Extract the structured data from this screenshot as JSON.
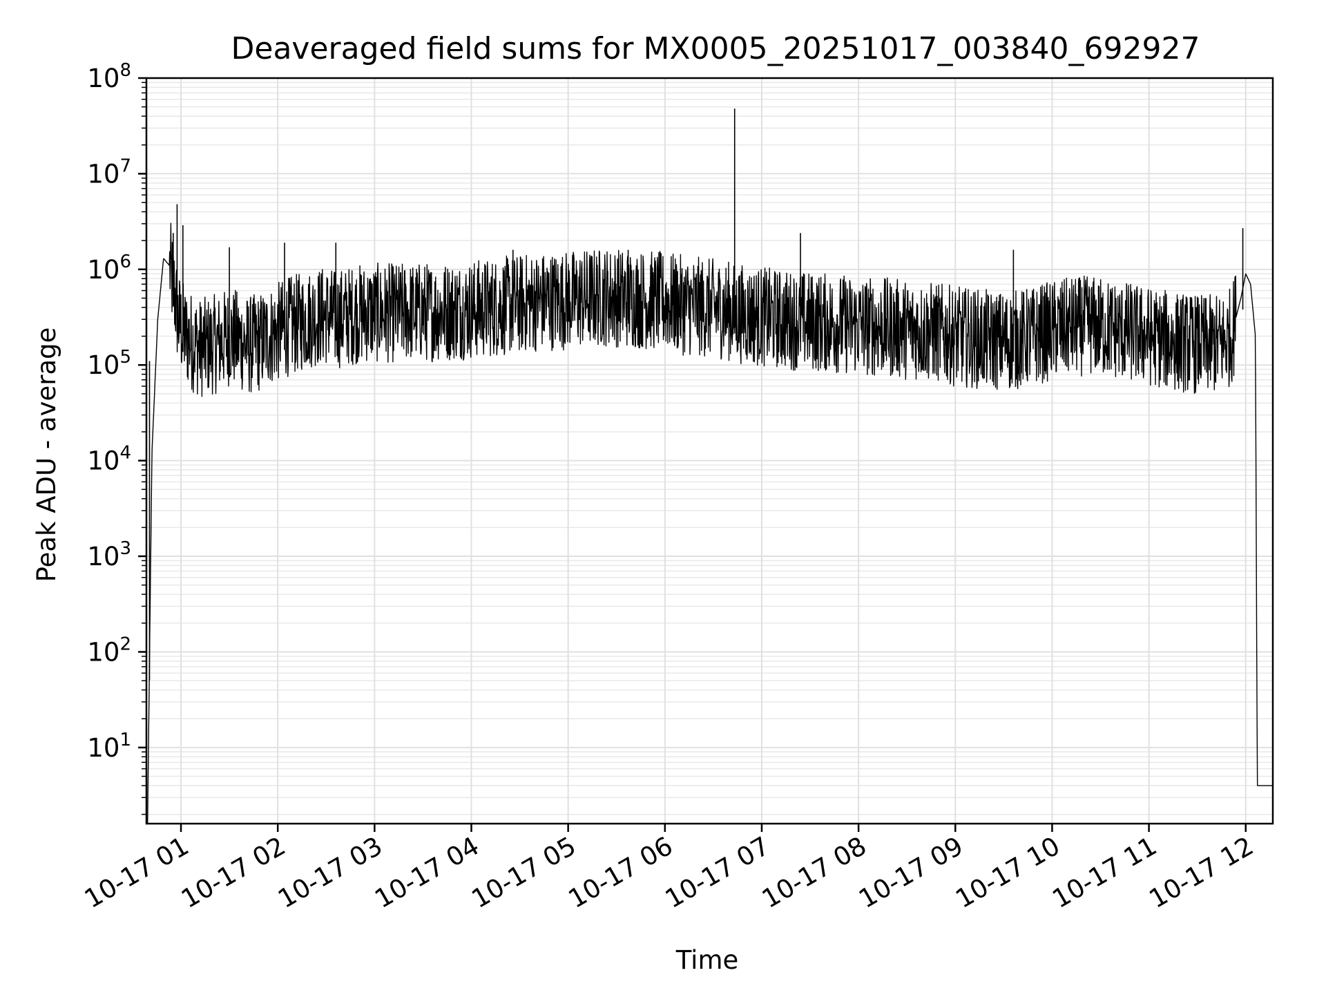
{
  "chart_data": {
    "type": "line",
    "title": "Deaveraged field sums for MX0005_20251017_003840_692927",
    "xlabel": "Time",
    "ylabel": "Peak ADU - average",
    "yscale": "log",
    "ylim": [
      1.6,
      100000000
    ],
    "xlim_hours": [
      0.643,
      12.28
    ],
    "grid": true,
    "x_tick_labels": [
      "10-17 01",
      "10-17 02",
      "10-17 03",
      "10-17 04",
      "10-17 05",
      "10-17 06",
      "10-17 07",
      "10-17 08",
      "10-17 09",
      "10-17 10",
      "10-17 11",
      "10-17 12"
    ],
    "x_tick_hours": [
      1,
      2,
      3,
      4,
      5,
      6,
      7,
      8,
      9,
      10,
      11,
      12
    ],
    "y_ticks": [
      {
        "base": "10",
        "exp": "1",
        "value": 10
      },
      {
        "base": "10",
        "exp": "2",
        "value": 100
      },
      {
        "base": "10",
        "exp": "3",
        "value": 1000
      },
      {
        "base": "10",
        "exp": "4",
        "value": 10000
      },
      {
        "base": "10",
        "exp": "5",
        "value": 100000
      },
      {
        "base": "10",
        "exp": "6",
        "value": 1000000
      },
      {
        "base": "10",
        "exp": "7",
        "value": 10000000
      },
      {
        "base": "10",
        "exp": "8",
        "value": 100000000
      }
    ],
    "series": [
      {
        "name": "Peak ADU - average",
        "color": "#000000",
        "x_hours": [
          0.655,
          0.7,
          0.76,
          0.82,
          0.88,
          0.93,
          0.97,
          1.0,
          1.05,
          1.1,
          1.2,
          1.3,
          1.4,
          1.5,
          1.6,
          1.7,
          1.8,
          1.9,
          2.0,
          2.1,
          2.2,
          2.3,
          2.4,
          2.5,
          2.6,
          2.7,
          2.8,
          2.9,
          3.0,
          3.2,
          3.4,
          3.6,
          3.8,
          4.0,
          4.2,
          4.4,
          4.6,
          4.8,
          5.0,
          5.2,
          5.4,
          5.6,
          5.8,
          6.0,
          6.2,
          6.4,
          6.6,
          6.7,
          6.8,
          7.0,
          7.2,
          7.4,
          7.6,
          7.8,
          8.0,
          8.2,
          8.4,
          8.6,
          8.8,
          9.0,
          9.2,
          9.4,
          9.6,
          9.8,
          10.0,
          10.2,
          10.4,
          10.6,
          10.8,
          11.0,
          11.2,
          11.4,
          11.6,
          11.75,
          11.85,
          11.95,
          12.0,
          12.05,
          12.1,
          12.12,
          12.28
        ],
        "y_values": [
          1.6,
          12000,
          300000,
          1300000,
          1100000,
          600000,
          300000,
          250000,
          200000,
          180000,
          150000,
          160000,
          170000,
          200000,
          180000,
          160000,
          170000,
          200000,
          220000,
          250000,
          270000,
          300000,
          320000,
          330000,
          300000,
          320000,
          340000,
          350000,
          350000,
          350000,
          360000,
          360000,
          370000,
          380000,
          400000,
          420000,
          450000,
          470000,
          480000,
          500000,
          520000,
          500000,
          480000,
          460000,
          420000,
          400000,
          380000,
          360000,
          340000,
          320000,
          300000,
          290000,
          280000,
          270000,
          260000,
          250000,
          240000,
          230000,
          220000,
          200000,
          190000,
          180000,
          180000,
          200000,
          230000,
          250000,
          260000,
          240000,
          220000,
          200000,
          180000,
          170000,
          160000,
          170000,
          200000,
          500000,
          900000,
          700000,
          200000,
          4,
          4
        ],
        "spikes": [
          {
            "x_hour": 0.96,
            "y": 4800000
          },
          {
            "x_hour": 1.02,
            "y": 2900000
          },
          {
            "x_hour": 0.92,
            "y": 2400000
          },
          {
            "x_hour": 1.5,
            "y": 1700000
          },
          {
            "x_hour": 2.07,
            "y": 1900000
          },
          {
            "x_hour": 2.6,
            "y": 1900000
          },
          {
            "x_hour": 4.43,
            "y": 1600000
          },
          {
            "x_hour": 5.62,
            "y": 1600000
          },
          {
            "x_hour": 6.72,
            "y": 48000000
          },
          {
            "x_hour": 7.4,
            "y": 2400000
          },
          {
            "x_hour": 9.6,
            "y": 1600000
          },
          {
            "x_hour": 11.97,
            "y": 2700000
          },
          {
            "x_hour": 0.675,
            "y": 110000
          }
        ]
      }
    ]
  }
}
